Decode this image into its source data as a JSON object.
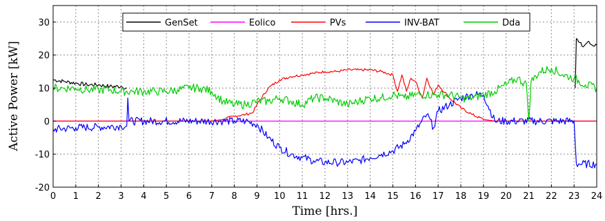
{
  "chart_data": {
    "type": "line",
    "title": "",
    "xlabel": "Time [hrs.]",
    "ylabel": "Active Power [kW]",
    "xlim": [
      0,
      24
    ],
    "ylim": [
      -20,
      35
    ],
    "xticks": [
      0,
      1,
      2,
      3,
      4,
      5,
      6,
      7,
      8,
      9,
      10,
      11,
      12,
      13,
      14,
      15,
      16,
      17,
      18,
      19,
      20,
      21,
      22,
      23,
      24
    ],
    "yticks": [
      -20,
      -10,
      0,
      10,
      20,
      30
    ],
    "grid": true,
    "legend_position": "top",
    "series": [
      {
        "name": "GenSet",
        "color": "#000000",
        "x": [
          0,
          0.5,
          1,
          1.5,
          2,
          2.5,
          3,
          3.25,
          3.26,
          23.0,
          23.05,
          23.1,
          23.2,
          23.4,
          23.6,
          23.8,
          24
        ],
        "y": [
          12.5,
          12,
          11.5,
          11,
          11,
          10.5,
          10.5,
          10,
          null,
          null,
          10,
          25,
          24,
          22.5,
          24,
          23,
          23
        ]
      },
      {
        "name": "Eolico",
        "color": "#ff00ff",
        "x": [
          0,
          24
        ],
        "y": [
          0,
          0
        ]
      },
      {
        "name": "PVs",
        "color": "#ff0000",
        "x": [
          0,
          7,
          7.5,
          8,
          8.5,
          8.8,
          9,
          9.5,
          10,
          10.5,
          11,
          11.5,
          12,
          12.5,
          13,
          13.5,
          14,
          14.5,
          15,
          15.2,
          15.4,
          15.6,
          15.8,
          16,
          16.3,
          16.5,
          16.8,
          17,
          17.5,
          18,
          18.5,
          19,
          19.5,
          20,
          24
        ],
        "y": [
          0,
          0,
          0.5,
          1.5,
          2,
          2.5,
          5,
          10,
          12.5,
          13.5,
          14,
          14.5,
          15,
          15,
          15.5,
          15.5,
          15.5,
          15,
          14,
          9,
          14,
          9,
          13,
          12,
          7,
          13,
          8,
          11,
          7,
          4,
          2,
          0.5,
          0,
          0,
          0
        ]
      },
      {
        "name": "INV-BAT",
        "color": "#0000ff",
        "x": [
          0,
          1,
          2,
          3,
          3.25,
          3.3,
          3.35,
          7.5,
          8,
          8.5,
          9,
          9.5,
          10,
          10.5,
          11,
          11.5,
          12,
          12.5,
          13,
          13.5,
          14,
          14.5,
          15,
          15.5,
          16,
          16.5,
          16.8,
          17,
          17.5,
          18,
          18.5,
          19,
          19.5,
          20,
          23,
          23.1,
          23.2,
          24
        ],
        "y": [
          -2.5,
          -2,
          -1.8,
          -1.5,
          -1.5,
          7,
          0,
          0,
          0,
          0,
          -1,
          -5,
          -8,
          -10,
          -11,
          -12,
          -12.5,
          -12.5,
          -12.5,
          -12,
          -11,
          -10,
          -9,
          -7,
          -3,
          2,
          -2,
          3,
          5,
          7,
          8,
          8,
          0,
          0,
          0,
          -13,
          -13,
          -13
        ]
      },
      {
        "name": "Dda",
        "color": "#00cc00",
        "x": [
          0,
          0.5,
          1,
          1.5,
          2,
          2.5,
          3,
          3.5,
          4,
          4.5,
          5,
          5.5,
          6,
          6.5,
          7,
          7.5,
          8,
          8.5,
          9,
          9.5,
          10,
          10.5,
          11,
          11.5,
          12,
          12.5,
          13,
          13.5,
          14,
          14.5,
          15,
          15.5,
          16,
          16.5,
          17,
          17.5,
          18,
          18.5,
          19,
          19.5,
          20,
          20.5,
          20.9,
          21,
          21.1,
          21.5,
          22,
          22.5,
          23,
          23.5,
          24
        ],
        "y": [
          10,
          10,
          10,
          9.5,
          9.5,
          9.5,
          9,
          9,
          9,
          9,
          9,
          9.5,
          10,
          10,
          9,
          6,
          5,
          5,
          6,
          6,
          7,
          6,
          5,
          7,
          7,
          6,
          5,
          6,
          7,
          7,
          8,
          7,
          8,
          8,
          8,
          8,
          7,
          7,
          8,
          9,
          11,
          13,
          11,
          0,
          12,
          15,
          16,
          14,
          13,
          11,
          10
        ]
      }
    ]
  }
}
